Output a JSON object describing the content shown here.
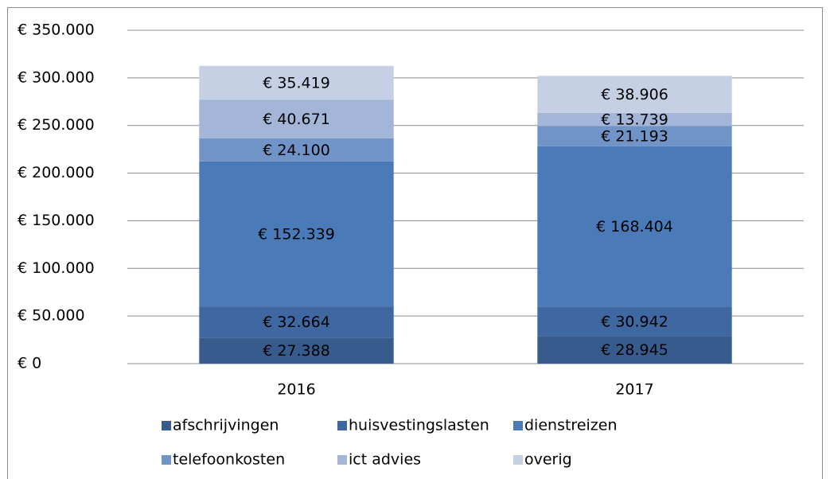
{
  "chart_data": {
    "type": "stacked_bar",
    "categories": [
      "2016",
      "2017"
    ],
    "series": [
      {
        "name": "afschrijvingen",
        "color": "#375b8c",
        "values": [
          27388,
          28945
        ],
        "value_labels": [
          "€ 27.388",
          "€ 28.945"
        ]
      },
      {
        "name": "huisvestingslasten",
        "color": "#3f68a0",
        "values": [
          32664,
          30942
        ],
        "value_labels": [
          "€ 32.664",
          "€ 30.942"
        ]
      },
      {
        "name": "dienstreizen",
        "color": "#4a7bb8",
        "values": [
          152339,
          168404
        ],
        "value_labels": [
          "€ 152.339",
          "€ 168.404"
        ]
      },
      {
        "name": "telefoonkosten",
        "color": "#7194c8",
        "values": [
          24100,
          21193
        ],
        "value_labels": [
          "€ 24.100",
          "€ 21.193"
        ]
      },
      {
        "name": "ict advies",
        "color": "#a3b6d8",
        "values": [
          40671,
          13739
        ],
        "value_labels": [
          "€ 40.671",
          "€ 13.739"
        ]
      },
      {
        "name": "overig",
        "color": "#c6d0e4",
        "values": [
          35419,
          38906
        ],
        "value_labels": [
          "€ 35.419",
          "€ 38.906"
        ]
      }
    ],
    "ylim": [
      0,
      350000
    ],
    "yticks": [
      {
        "value": 0,
        "label": "€ 0"
      },
      {
        "value": 50000,
        "label": "€ 50.000"
      },
      {
        "value": 100000,
        "label": "€ 100.000"
      },
      {
        "value": 150000,
        "label": "€ 150.000"
      },
      {
        "value": 200000,
        "label": "€ 200.000"
      },
      {
        "value": 250000,
        "label": "€ 250.000"
      },
      {
        "value": 300000,
        "label": "€ 300.000"
      },
      {
        "value": 350000,
        "label": "€ 350.000"
      }
    ],
    "grid": true,
    "legend": "bottom"
  }
}
